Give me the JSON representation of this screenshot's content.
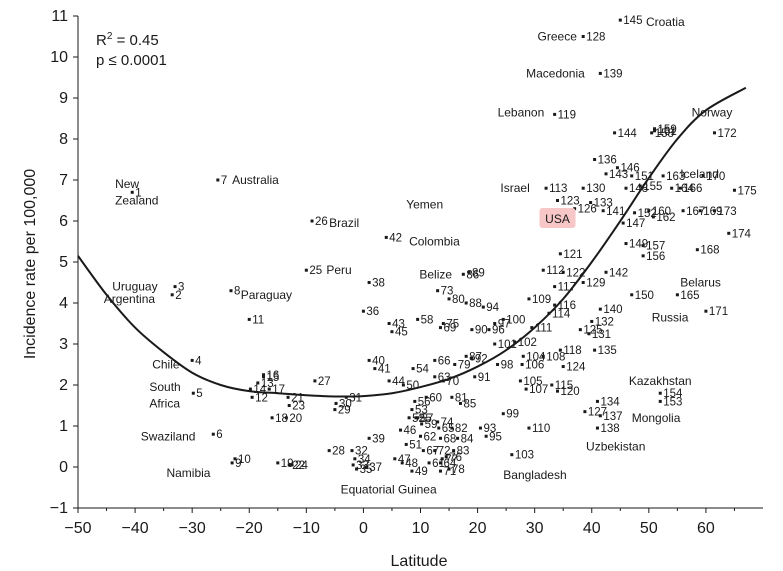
{
  "chart_data": {
    "type": "scatter",
    "xlabel": "Latitude",
    "ylabel": "Incidence rate per 100,000",
    "xlim": [
      -50,
      70
    ],
    "ylim": [
      -1,
      11
    ],
    "xticks": [
      -50,
      -40,
      -30,
      -20,
      -10,
      0,
      10,
      20,
      30,
      40,
      50,
      60
    ],
    "yticks": [
      -1,
      0,
      1,
      2,
      3,
      4,
      5,
      6,
      7,
      8,
      9,
      10,
      11
    ],
    "grid": false,
    "r2_text": "R",
    "r2_sup": "2",
    "r2_value": " = 0.45",
    "p_text": "p ≤ 0.0001",
    "highlight_color": "#f7c6c6",
    "fit_curve": [
      [
        -50,
        5.15
      ],
      [
        -45,
        4.2
      ],
      [
        -40,
        3.4
      ],
      [
        -35,
        2.8
      ],
      [
        -30,
        2.3
      ],
      [
        -25,
        2.0
      ],
      [
        -20,
        1.85
      ],
      [
        -15,
        1.8
      ],
      [
        -10,
        1.75
      ],
      [
        -5,
        1.72
      ],
      [
        0,
        1.73
      ],
      [
        5,
        1.8
      ],
      [
        10,
        1.95
      ],
      [
        15,
        2.15
      ],
      [
        20,
        2.45
      ],
      [
        25,
        2.85
      ],
      [
        30,
        3.4
      ],
      [
        35,
        4.1
      ],
      [
        40,
        5.0
      ],
      [
        45,
        6.0
      ],
      [
        50,
        7.05
      ],
      [
        55,
        8.0
      ],
      [
        60,
        8.7
      ],
      [
        67,
        9.25
      ]
    ],
    "points": [
      {
        "id": "1",
        "x": -40.5,
        "y": 6.7
      },
      {
        "id": "2",
        "x": -33.5,
        "y": 4.2
      },
      {
        "id": "3",
        "x": -33.0,
        "y": 4.4
      },
      {
        "id": "4",
        "x": -30.0,
        "y": 2.6
      },
      {
        "id": "5",
        "x": -29.8,
        "y": 1.8
      },
      {
        "id": "6",
        "x": -26.3,
        "y": 0.8
      },
      {
        "id": "7",
        "x": -25.5,
        "y": 7.0
      },
      {
        "id": "8",
        "x": -23.2,
        "y": 4.3
      },
      {
        "id": "9",
        "x": -23.0,
        "y": 0.1
      },
      {
        "id": "10",
        "x": -22.5,
        "y": 0.2
      },
      {
        "id": "11",
        "x": -20.0,
        "y": 3.6
      },
      {
        "id": "12",
        "x": -19.5,
        "y": 1.7
      },
      {
        "id": "13",
        "x": -18.5,
        "y": 2.05
      },
      {
        "id": "14",
        "x": -19.8,
        "y": 1.9
      },
      {
        "id": "15",
        "x": -17.5,
        "y": 2.2
      },
      {
        "id": "16",
        "x": -17.5,
        "y": 2.25
      },
      {
        "id": "17",
        "x": -16.5,
        "y": 1.9
      },
      {
        "id": "18",
        "x": -16.0,
        "y": 1.2
      },
      {
        "id": "19",
        "x": -15.0,
        "y": 0.1
      },
      {
        "id": "20",
        "x": -13.5,
        "y": 1.2
      },
      {
        "id": "21",
        "x": -13.2,
        "y": 1.7
      },
      {
        "id": "22",
        "x": -13.0,
        "y": 0.05
      },
      {
        "id": "23",
        "x": -13.0,
        "y": 1.5
      },
      {
        "id": "24",
        "x": -12.5,
        "y": 0.05
      },
      {
        "id": "25",
        "x": -10.0,
        "y": 4.8
      },
      {
        "id": "26",
        "x": -9.0,
        "y": 6.0
      },
      {
        "id": "27",
        "x": -8.5,
        "y": 2.1
      },
      {
        "id": "28",
        "x": -6.0,
        "y": 0.4
      },
      {
        "id": "29",
        "x": -5.0,
        "y": 1.4
      },
      {
        "id": "30",
        "x": -4.8,
        "y": 1.55
      },
      {
        "id": "31",
        "x": -3.0,
        "y": 1.7
      },
      {
        "id": "32",
        "x": -2.0,
        "y": 0.4
      },
      {
        "id": "33",
        "x": -1.8,
        "y": 0.05
      },
      {
        "id": "34",
        "x": -1.5,
        "y": 0.2
      },
      {
        "id": "35",
        "x": -1.2,
        "y": -0.05
      },
      {
        "id": "36",
        "x": 0.0,
        "y": 3.8
      },
      {
        "id": "37",
        "x": 0.5,
        "y": 0.0
      },
      {
        "id": "38",
        "x": 1.0,
        "y": 4.5
      },
      {
        "id": "39",
        "x": 1.0,
        "y": 0.7
      },
      {
        "id": "40",
        "x": 1.0,
        "y": 2.6
      },
      {
        "id": "41",
        "x": 2.0,
        "y": 2.4
      },
      {
        "id": "42",
        "x": 4.0,
        "y": 5.6
      },
      {
        "id": "43",
        "x": 4.5,
        "y": 3.5
      },
      {
        "id": "44",
        "x": 4.5,
        "y": 2.1
      },
      {
        "id": "45",
        "x": 5.0,
        "y": 3.3
      },
      {
        "id": "46",
        "x": 6.5,
        "y": 0.9
      },
      {
        "id": "47",
        "x": 5.5,
        "y": 0.2
      },
      {
        "id": "48",
        "x": 6.8,
        "y": 0.1
      },
      {
        "id": "49",
        "x": 8.5,
        "y": -0.1
      },
      {
        "id": "50",
        "x": 7.0,
        "y": 2.0
      },
      {
        "id": "51",
        "x": 7.5,
        "y": 0.55
      },
      {
        "id": "52",
        "x": 8.0,
        "y": 1.2
      },
      {
        "id": "53",
        "x": 8.5,
        "y": 1.4
      },
      {
        "id": "54",
        "x": 8.7,
        "y": 2.4
      },
      {
        "id": "55",
        "x": 9.2,
        "y": 1.2
      },
      {
        "id": "56",
        "x": 9.0,
        "y": 1.6
      },
      {
        "id": "57",
        "x": 9.5,
        "y": 1.2
      },
      {
        "id": "58",
        "x": 9.5,
        "y": 3.6
      },
      {
        "id": "59",
        "x": 10.2,
        "y": 1.05
      },
      {
        "id": "60",
        "x": 11.0,
        "y": 1.7
      },
      {
        "id": "61",
        "x": 11.5,
        "y": 0.1
      },
      {
        "id": "62",
        "x": 10.0,
        "y": 0.75
      },
      {
        "id": "63",
        "x": 12.5,
        "y": 2.2
      },
      {
        "id": "64",
        "x": 13.5,
        "y": 0.1
      },
      {
        "id": "65",
        "x": 13.2,
        "y": 0.95
      },
      {
        "id": "66",
        "x": 12.5,
        "y": 2.6
      },
      {
        "id": "67",
        "x": 10.5,
        "y": 0.4
      },
      {
        "id": "68",
        "x": 13.5,
        "y": 0.7
      },
      {
        "id": "69",
        "x": 13.5,
        "y": 3.4
      },
      {
        "id": "70",
        "x": 14.0,
        "y": 2.1
      },
      {
        "id": "71",
        "x": 13.5,
        "y": -0.1
      },
      {
        "id": "72",
        "x": 12.5,
        "y": 0.4
      },
      {
        "id": "73",
        "x": 13.0,
        "y": 4.3
      },
      {
        "id": "74",
        "x": 13.0,
        "y": 1.1
      },
      {
        "id": "75",
        "x": 14.0,
        "y": 3.5
      },
      {
        "id": "76",
        "x": 14.5,
        "y": 0.25
      },
      {
        "id": "77",
        "x": 13.8,
        "y": 0.2
      },
      {
        "id": "78",
        "x": 15.0,
        "y": -0.05
      },
      {
        "id": "79",
        "x": 16.0,
        "y": 2.5
      },
      {
        "id": "80",
        "x": 15.0,
        "y": 4.1
      },
      {
        "id": "81",
        "x": 15.5,
        "y": 1.7
      },
      {
        "id": "82",
        "x": 15.5,
        "y": 0.95
      },
      {
        "id": "83",
        "x": 15.8,
        "y": 0.4
      },
      {
        "id": "84",
        "x": 16.5,
        "y": 0.7
      },
      {
        "id": "85",
        "x": 17.0,
        "y": 1.55
      },
      {
        "id": "86",
        "x": 17.5,
        "y": 4.7
      },
      {
        "id": "87",
        "x": 18.0,
        "y": 2.7
      },
      {
        "id": "88",
        "x": 18.0,
        "y": 4.0
      },
      {
        "id": "89",
        "x": 18.5,
        "y": 4.75
      },
      {
        "id": "90",
        "x": 19.0,
        "y": 3.35
      },
      {
        "id": "91",
        "x": 19.5,
        "y": 2.2
      },
      {
        "id": "92",
        "x": 19.0,
        "y": 2.65
      },
      {
        "id": "93",
        "x": 20.5,
        "y": 0.95
      },
      {
        "id": "94",
        "x": 21.0,
        "y": 3.9
      },
      {
        "id": "95",
        "x": 21.5,
        "y": 0.75
      },
      {
        "id": "96",
        "x": 22.0,
        "y": 3.35
      },
      {
        "id": "97",
        "x": 23.0,
        "y": 3.5
      },
      {
        "id": "98",
        "x": 23.5,
        "y": 2.5
      },
      {
        "id": "99",
        "x": 24.5,
        "y": 1.3
      },
      {
        "id": "100",
        "x": 24.5,
        "y": 3.6
      },
      {
        "id": "101",
        "x": 23.0,
        "y": 3.0
      },
      {
        "id": "102",
        "x": 26.5,
        "y": 3.05
      },
      {
        "id": "103",
        "x": 26.0,
        "y": 0.3
      },
      {
        "id": "104",
        "x": 28.0,
        "y": 2.7
      },
      {
        "id": "105",
        "x": 27.5,
        "y": 2.1
      },
      {
        "id": "106",
        "x": 27.8,
        "y": 2.5
      },
      {
        "id": "107",
        "x": 28.5,
        "y": 1.9
      },
      {
        "id": "108",
        "x": 31.5,
        "y": 2.7
      },
      {
        "id": "109",
        "x": 29.0,
        "y": 4.1
      },
      {
        "id": "110",
        "x": 29.0,
        "y": 0.95
      },
      {
        "id": "111",
        "x": 29.5,
        "y": 3.4
      },
      {
        "id": "112",
        "x": 31.5,
        "y": 4.8
      },
      {
        "id": "113",
        "x": 32.0,
        "y": 6.8
      },
      {
        "id": "114",
        "x": 32.5,
        "y": 3.75
      },
      {
        "id": "115",
        "x": 33.0,
        "y": 2.0
      },
      {
        "id": "116",
        "x": 33.5,
        "y": 3.95
      },
      {
        "id": "117",
        "x": 33.5,
        "y": 4.4
      },
      {
        "id": "118",
        "x": 34.5,
        "y": 2.85
      },
      {
        "id": "119",
        "x": 33.5,
        "y": 8.6
      },
      {
        "id": "120",
        "x": 34.0,
        "y": 1.85
      },
      {
        "id": "121",
        "x": 34.5,
        "y": 5.2
      },
      {
        "id": "122",
        "x": 35.0,
        "y": 4.75
      },
      {
        "id": "123",
        "x": 34.0,
        "y": 6.5
      },
      {
        "id": "124",
        "x": 35.0,
        "y": 2.45
      },
      {
        "id": "125",
        "x": 38.0,
        "y": 3.35
      },
      {
        "id": "126",
        "x": 37.0,
        "y": 6.3
      },
      {
        "id": "127",
        "x": 38.8,
        "y": 1.35
      },
      {
        "id": "128",
        "x": 38.5,
        "y": 10.5
      },
      {
        "id": "129",
        "x": 38.5,
        "y": 4.5
      },
      {
        "id": "130",
        "x": 38.5,
        "y": 6.8
      },
      {
        "id": "131",
        "x": 39.5,
        "y": 3.25
      },
      {
        "id": "132",
        "x": 40.0,
        "y": 3.55
      },
      {
        "id": "133",
        "x": 39.8,
        "y": 6.45
      },
      {
        "id": "134",
        "x": 41.0,
        "y": 1.6
      },
      {
        "id": "135",
        "x": 40.5,
        "y": 2.85
      },
      {
        "id": "136",
        "x": 40.5,
        "y": 7.5
      },
      {
        "id": "137",
        "x": 41.5,
        "y": 1.25
      },
      {
        "id": "138",
        "x": 41.0,
        "y": 0.95
      },
      {
        "id": "139",
        "x": 41.5,
        "y": 9.6
      },
      {
        "id": "140",
        "x": 41.5,
        "y": 3.85
      },
      {
        "id": "141",
        "x": 42.0,
        "y": 6.25
      },
      {
        "id": "142",
        "x": 42.5,
        "y": 4.75
      },
      {
        "id": "143",
        "x": 42.5,
        "y": 7.15
      },
      {
        "id": "144",
        "x": 44.0,
        "y": 8.15
      },
      {
        "id": "145",
        "x": 45.0,
        "y": 10.9
      },
      {
        "id": "146",
        "x": 44.5,
        "y": 7.3
      },
      {
        "id": "147",
        "x": 45.5,
        "y": 5.95
      },
      {
        "id": "148",
        "x": 46.0,
        "y": 6.8
      },
      {
        "id": "149",
        "x": 46.0,
        "y": 5.45
      },
      {
        "id": "150",
        "x": 47.0,
        "y": 4.2
      },
      {
        "id": "151",
        "x": 47.0,
        "y": 7.1
      },
      {
        "id": "152",
        "x": 47.5,
        "y": 6.2
      },
      {
        "id": "153",
        "x": 52.0,
        "y": 1.6
      },
      {
        "id": "154",
        "x": 52.0,
        "y": 1.8
      },
      {
        "id": "155",
        "x": 48.5,
        "y": 6.85
      },
      {
        "id": "156",
        "x": 49.0,
        "y": 5.15
      },
      {
        "id": "157",
        "x": 49.0,
        "y": 5.4
      },
      {
        "id": "158",
        "x": 50.5,
        "y": 8.15
      },
      {
        "id": "159",
        "x": 51.0,
        "y": 8.25
      },
      {
        "id": "160",
        "x": 50.0,
        "y": 6.25
      },
      {
        "id": "161",
        "x": 51.0,
        "y": 8.2
      },
      {
        "id": "162",
        "x": 50.8,
        "y": 6.1
      },
      {
        "id": "163",
        "x": 52.5,
        "y": 7.1
      },
      {
        "id": "164",
        "x": 54.0,
        "y": 6.8
      },
      {
        "id": "165",
        "x": 55.0,
        "y": 4.2
      },
      {
        "id": "166",
        "x": 55.5,
        "y": 6.8
      },
      {
        "id": "167",
        "x": 56.0,
        "y": 6.25
      },
      {
        "id": "168",
        "x": 58.5,
        "y": 5.3
      },
      {
        "id": "169",
        "x": 59.0,
        "y": 6.25
      },
      {
        "id": "170",
        "x": 59.5,
        "y": 7.1
      },
      {
        "id": "171",
        "x": 60.0,
        "y": 3.8
      },
      {
        "id": "172",
        "x": 61.5,
        "y": 8.15
      },
      {
        "id": "173",
        "x": 61.5,
        "y": 6.25
      },
      {
        "id": "174",
        "x": 64.0,
        "y": 5.7
      },
      {
        "id": "175",
        "x": 65.0,
        "y": 6.75
      }
    ],
    "country_labels": [
      {
        "text": "New",
        "x": -43.5,
        "y": 6.9
      },
      {
        "text": "Zealand",
        "x": -43.5,
        "y": 6.5
      },
      {
        "text": "Australia",
        "x": -23.0,
        "y": 7.0
      },
      {
        "text": "Uruguay",
        "x": -44.0,
        "y": 4.4
      },
      {
        "text": "Argentina",
        "x": -45.5,
        "y": 4.1
      },
      {
        "text": "Paraguay",
        "x": -21.5,
        "y": 4.2
      },
      {
        "text": "Chile",
        "x": -37.0,
        "y": 2.5
      },
      {
        "text": "South",
        "x": -37.5,
        "y": 1.95
      },
      {
        "text": "Africa",
        "x": -37.5,
        "y": 1.55
      },
      {
        "text": "Swaziland",
        "x": -39.0,
        "y": 0.75
      },
      {
        "text": "Namibia",
        "x": -34.5,
        "y": -0.15
      },
      {
        "text": "Brazil",
        "x": -6.0,
        "y": 5.95
      },
      {
        "text": "Peru",
        "x": -6.5,
        "y": 4.8
      },
      {
        "text": "Yemen",
        "x": 7.5,
        "y": 6.4
      },
      {
        "text": "Colombia",
        "x": 8.0,
        "y": 5.5
      },
      {
        "text": "Belize",
        "x": 9.8,
        "y": 4.7
      },
      {
        "text": "Equatorial Guinea",
        "x": -4.0,
        "y": -0.55
      },
      {
        "text": "Greece",
        "x": 30.5,
        "y": 10.5
      },
      {
        "text": "Croatia",
        "x": 49.5,
        "y": 10.85
      },
      {
        "text": "Macedonia",
        "x": 28.5,
        "y": 9.6
      },
      {
        "text": "Lebanon",
        "x": 23.5,
        "y": 8.65
      },
      {
        "text": "Israel",
        "x": 24.0,
        "y": 6.8
      },
      {
        "text": "Norway",
        "x": 57.5,
        "y": 8.65
      },
      {
        "text": "Iceland",
        "x": 55.5,
        "y": 7.15
      },
      {
        "text": "Belarus",
        "x": 55.5,
        "y": 4.5
      },
      {
        "text": "Russia",
        "x": 50.5,
        "y": 3.65
      },
      {
        "text": "Kazakhstan",
        "x": 46.5,
        "y": 2.1
      },
      {
        "text": "Mongolia",
        "x": 47.0,
        "y": 1.2
      },
      {
        "text": "Uzbekistan",
        "x": 39.0,
        "y": 0.5
      },
      {
        "text": "Bangladesh",
        "x": 24.5,
        "y": -0.2
      }
    ],
    "usa_label": {
      "text": "USA",
      "x": 34.0,
      "y": 6.05
    }
  }
}
